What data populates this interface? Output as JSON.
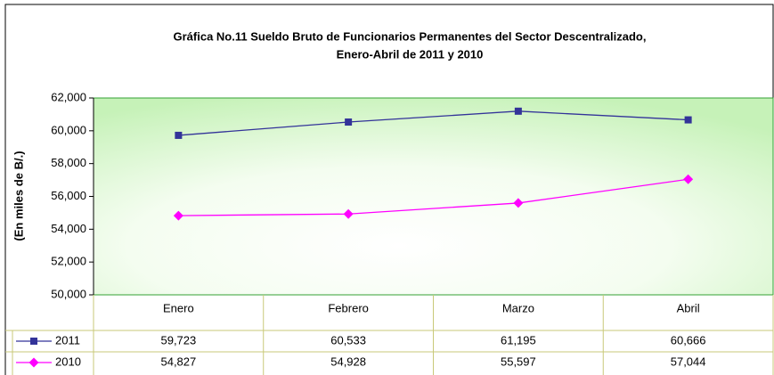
{
  "chart_data": {
    "type": "line",
    "title": [
      "Gráfica No.11 Sueldo Bruto de Funcionarios Permanentes del Sector Descentralizado,",
      "Enero-Abril de 2011 y 2010"
    ],
    "y_label": "(En miles de B/.)",
    "categories": [
      "Enero",
      "Febrero",
      "Marzo",
      "Abril"
    ],
    "series": [
      {
        "name": "2011",
        "color": "#333399",
        "marker": "square",
        "values": [
          59723,
          60533,
          61195,
          60666
        ],
        "value_labels": [
          "59,723",
          "60,533",
          "61,195",
          "60,666"
        ]
      },
      {
        "name": "2010",
        "color": "#ff00ff",
        "marker": "diamond",
        "values": [
          54827,
          54928,
          55597,
          57044
        ],
        "value_labels": [
          "54,827",
          "54,928",
          "55,597",
          "57,044"
        ]
      }
    ],
    "ylim": [
      50000,
      62000
    ],
    "yticks": [
      {
        "value": 50000,
        "label": "50,000"
      },
      {
        "value": 52000,
        "label": "52,000"
      },
      {
        "value": 54000,
        "label": "54,000"
      },
      {
        "value": 56000,
        "label": "56,000"
      },
      {
        "value": 58000,
        "label": "58,000"
      },
      {
        "value": 60000,
        "label": "60,000"
      },
      {
        "value": 62000,
        "label": "62,000"
      }
    ],
    "grid": false
  }
}
